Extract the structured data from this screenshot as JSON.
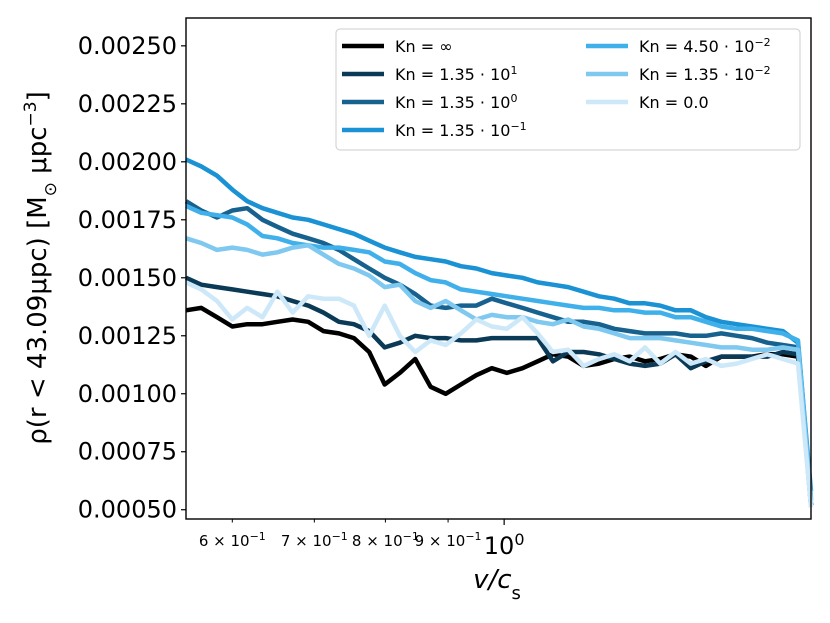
{
  "chart_data": {
    "type": "line",
    "title": "",
    "xscale": "log",
    "xlim": [
      0.55,
      1.78
    ],
    "ylim": [
      0.00046,
      0.00262
    ],
    "xlabel": "v/c",
    "xlabel_sub": "s",
    "ylabel": "ρ(r < 43.09μpc) [M",
    "ylabel_sun": "⊙",
    "ylabel_unit": " μpc",
    "ylabel_exp": "−3",
    "ylabel_close": "]",
    "yticks": [
      0.0005,
      0.00075,
      0.001,
      0.00125,
      0.0015,
      0.00175,
      0.002,
      0.00225,
      0.0025
    ],
    "ytick_labels": [
      "0.00050",
      "0.00075",
      "0.00100",
      "0.00125",
      "0.00150",
      "0.00175",
      "0.00200",
      "0.00225",
      "0.00250"
    ],
    "xticks_major": [
      {
        "value": 1.0,
        "base": "10",
        "exp": "0"
      }
    ],
    "xticks_minor": [
      {
        "value": 0.6,
        "mant": "6 × 10",
        "exp": "−1"
      },
      {
        "value": 0.7,
        "mant": "7 × 10",
        "exp": "−1"
      },
      {
        "value": 0.8,
        "mant": "8 × 10",
        "exp": "−1"
      },
      {
        "value": 0.9,
        "mant": "9 × 10",
        "exp": "−1"
      }
    ],
    "legend_position": "upper right",
    "x": [
      0.55,
      0.566,
      0.583,
      0.6,
      0.617,
      0.635,
      0.653,
      0.672,
      0.692,
      0.712,
      0.733,
      0.754,
      0.776,
      0.799,
      0.822,
      0.846,
      0.871,
      0.896,
      0.922,
      0.949,
      0.977,
      1.005,
      1.035,
      1.065,
      1.096,
      1.128,
      1.161,
      1.195,
      1.23,
      1.266,
      1.303,
      1.341,
      1.38,
      1.42,
      1.461,
      1.504,
      1.548,
      1.593,
      1.64,
      1.688,
      1.737,
      1.78
    ],
    "series": [
      {
        "name": "Kn = ∞",
        "label_main": "Kn = ∞",
        "label_exp": "",
        "color": "#000000",
        "values": [
          0.00136,
          0.00137,
          0.00133,
          0.00129,
          0.0013,
          0.0013,
          0.00131,
          0.00132,
          0.00131,
          0.00127,
          0.00126,
          0.00124,
          0.00118,
          0.00104,
          0.00109,
          0.00115,
          0.00103,
          0.001,
          0.00104,
          0.00108,
          0.00111,
          0.00109,
          0.00111,
          0.00114,
          0.00117,
          0.00116,
          0.00112,
          0.00113,
          0.00115,
          0.00116,
          0.00114,
          0.00115,
          0.00117,
          0.00116,
          0.00112,
          0.00116,
          0.00116,
          0.00116,
          0.00117,
          0.00117,
          0.00116,
          0.00052
        ]
      },
      {
        "name": "Kn = 1.35·10^1",
        "label_main": "Kn = 1.35 · 10",
        "label_exp": "1",
        "color": "#0b3a56",
        "values": [
          0.0015,
          0.00147,
          0.00146,
          0.00145,
          0.00144,
          0.00143,
          0.00142,
          0.0014,
          0.00138,
          0.00135,
          0.00131,
          0.0013,
          0.00127,
          0.0012,
          0.00122,
          0.00125,
          0.00124,
          0.00124,
          0.00123,
          0.00123,
          0.00124,
          0.00124,
          0.00124,
          0.00124,
          0.00114,
          0.00118,
          0.00118,
          0.00117,
          0.00115,
          0.00113,
          0.00112,
          0.00113,
          0.00117,
          0.00111,
          0.00114,
          0.00116,
          0.00116,
          0.00116,
          0.00116,
          0.00118,
          0.00117,
          0.00052
        ]
      },
      {
        "name": "Kn = 1.35·10^0",
        "label_main": "Kn = 1.35 · 10",
        "label_exp": "0",
        "color": "#17618f",
        "values": [
          0.00183,
          0.00179,
          0.00176,
          0.00179,
          0.0018,
          0.00175,
          0.00172,
          0.00169,
          0.00167,
          0.00165,
          0.00162,
          0.00158,
          0.00154,
          0.0015,
          0.00147,
          0.00143,
          0.00138,
          0.00137,
          0.00138,
          0.00138,
          0.00141,
          0.00139,
          0.00137,
          0.00135,
          0.00133,
          0.00131,
          0.00131,
          0.0013,
          0.00128,
          0.00127,
          0.00126,
          0.00126,
          0.00126,
          0.00125,
          0.00125,
          0.00126,
          0.00125,
          0.00124,
          0.00122,
          0.00121,
          0.0012,
          0.00054
        ]
      },
      {
        "name": "Kn = 1.35·10^-1",
        "label_main": "Kn = 1.35 · 10",
        "label_exp": "−1",
        "color": "#1a92d4",
        "values": [
          0.00201,
          0.00198,
          0.00194,
          0.00188,
          0.00183,
          0.0018,
          0.00178,
          0.00176,
          0.00175,
          0.00173,
          0.00171,
          0.00169,
          0.00166,
          0.00163,
          0.00161,
          0.00159,
          0.00158,
          0.00157,
          0.00155,
          0.00154,
          0.00152,
          0.00151,
          0.0015,
          0.00148,
          0.00147,
          0.00146,
          0.00144,
          0.00142,
          0.00141,
          0.00139,
          0.00139,
          0.00138,
          0.00136,
          0.00136,
          0.00133,
          0.00131,
          0.0013,
          0.00129,
          0.00128,
          0.00127,
          0.00122,
          0.00058
        ]
      },
      {
        "name": "Kn = 4.50·10^-2",
        "label_main": "Kn = 4.50 · 10",
        "label_exp": "−2",
        "color": "#40b0ea",
        "values": [
          0.00181,
          0.00178,
          0.00177,
          0.00176,
          0.00173,
          0.00168,
          0.00167,
          0.00165,
          0.00164,
          0.00163,
          0.00163,
          0.00162,
          0.00161,
          0.00157,
          0.00156,
          0.00152,
          0.00149,
          0.00148,
          0.00145,
          0.00144,
          0.00143,
          0.00142,
          0.00141,
          0.0014,
          0.00139,
          0.00138,
          0.00137,
          0.00137,
          0.00136,
          0.00136,
          0.00135,
          0.00135,
          0.00133,
          0.00133,
          0.00131,
          0.00129,
          0.00128,
          0.00128,
          0.00127,
          0.00126,
          0.00123,
          0.00055
        ]
      },
      {
        "name": "Kn = 1.35·10^-2",
        "label_main": "Kn = 1.35 · 10",
        "label_exp": "−2",
        "color": "#7fc8f0",
        "values": [
          0.00167,
          0.00165,
          0.00162,
          0.00163,
          0.00162,
          0.0016,
          0.00161,
          0.00163,
          0.00164,
          0.0016,
          0.00156,
          0.00154,
          0.00151,
          0.00146,
          0.00147,
          0.0014,
          0.00137,
          0.0014,
          0.00136,
          0.00132,
          0.00134,
          0.00133,
          0.00133,
          0.00131,
          0.0013,
          0.00132,
          0.00129,
          0.00128,
          0.00126,
          0.00124,
          0.00124,
          0.00124,
          0.00123,
          0.00122,
          0.00121,
          0.0012,
          0.0012,
          0.00119,
          0.00119,
          0.0012,
          0.00119,
          0.00053
        ]
      },
      {
        "name": "Kn = 0.0",
        "label_main": "Kn = 0.0",
        "label_exp": "",
        "color": "#cde8f8",
        "values": [
          0.00148,
          0.00145,
          0.0014,
          0.00132,
          0.00137,
          0.00133,
          0.00144,
          0.00135,
          0.00142,
          0.00141,
          0.00141,
          0.00138,
          0.00125,
          0.00138,
          0.00125,
          0.00118,
          0.00123,
          0.00121,
          0.00126,
          0.00132,
          0.00129,
          0.00128,
          0.00133,
          0.00126,
          0.00118,
          0.00119,
          0.00112,
          0.00115,
          0.00117,
          0.00114,
          0.0012,
          0.00113,
          0.00118,
          0.00113,
          0.00115,
          0.00112,
          0.00113,
          0.00115,
          0.00117,
          0.00115,
          0.00113,
          0.00051
        ]
      }
    ]
  }
}
